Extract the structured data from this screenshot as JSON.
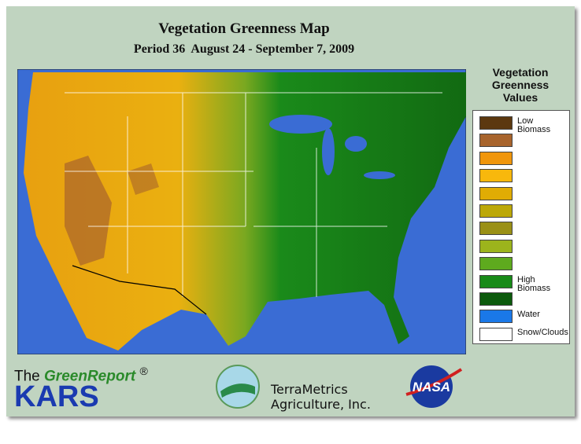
{
  "header": {
    "title": "Vegetation Greenness Map",
    "subtitle": "Period 36  August 24 - September 7, 2009"
  },
  "legend": {
    "title": "Vegetation Greenness Values",
    "items": [
      {
        "color": "#5c3810",
        "label": "Low Biomass"
      },
      {
        "color": "#a8642c"
      },
      {
        "color": "#f0960c"
      },
      {
        "color": "#f8b80c"
      },
      {
        "color": "#e0ac04"
      },
      {
        "color": "#bca808"
      },
      {
        "color": "#9a9016"
      },
      {
        "color": "#9cb41c"
      },
      {
        "color": "#5eaa1e"
      },
      {
        "color": "#188a18",
        "label": "High Biomass"
      },
      {
        "color": "#0c5a0c"
      },
      {
        "color": "#1a78e8",
        "label": "Water"
      },
      {
        "color": "#ffffff",
        "label": "Snow/Clouds"
      }
    ]
  },
  "footer": {
    "brand_prefix": "The",
    "brand_name": "GreenReport",
    "registered": "®",
    "kars": "KARS",
    "partner_name": "TerraMetrics",
    "partner_sub": "Agriculture, Inc.",
    "nasa": "NASA"
  }
}
